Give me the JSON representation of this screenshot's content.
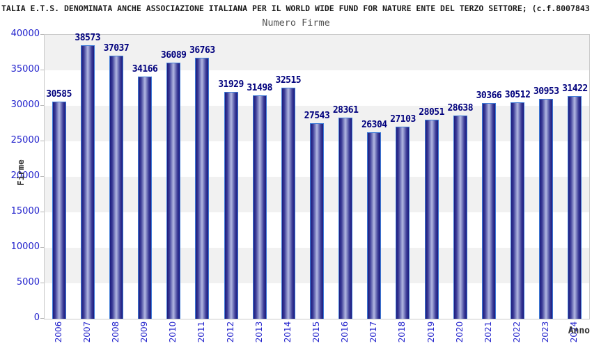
{
  "header": {
    "text": "TALIA E.T.S. DENOMINATA ANCHE ASSOCIAZIONE ITALIANA PER IL WORLD WIDE FUND FOR NATURE ENTE DEL TERZO SETTORE; (c.f.8007843"
  },
  "chart_data": {
    "type": "bar",
    "title": "Numero Firme",
    "xlabel": "Anno",
    "ylabel": "Firme",
    "categories": [
      "2006",
      "2007",
      "2008",
      "2009",
      "2010",
      "2011",
      "2012",
      "2013",
      "2014",
      "2015",
      "2016",
      "2017",
      "2018",
      "2019",
      "2020",
      "2021",
      "2022",
      "2023",
      "2024"
    ],
    "values": [
      30585,
      38573,
      37037,
      34166,
      36089,
      36763,
      31929,
      31498,
      32515,
      27543,
      28361,
      26304,
      27103,
      28051,
      28638,
      30366,
      30512,
      30953,
      31422
    ],
    "ylim": [
      0,
      40000
    ],
    "ytick_step": 5000,
    "yticks": [
      "40000",
      "35000",
      "30000",
      "25000",
      "20000",
      "15000",
      "10000",
      "5000",
      "0"
    ],
    "legend": "none",
    "grid": "alternating-bands",
    "colors": {
      "bar_edge": "#1b1b7e",
      "bar_center": "#b2b8e2",
      "bar_outline": "#3f7cd8",
      "tick_label": "#2222cc",
      "value_label": "#00007d",
      "band_gray": "#f1f1f1",
      "band_white": "#ffffff",
      "frame": "#c9c9c9",
      "title": "#555555",
      "header": "#1a1a1a",
      "axis_title": "#333333"
    }
  }
}
